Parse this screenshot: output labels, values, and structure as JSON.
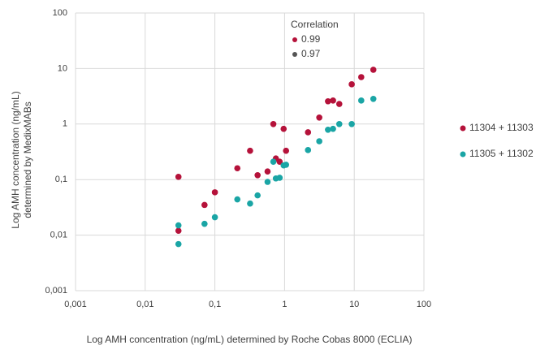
{
  "chart_data": {
    "type": "scatter",
    "xlabel": "Log AMH concentration (ng/mL) determined by Roche Cobas 8000 (ECLIA)",
    "ylabel": [
      "Log AMH concentration (ng/mL)",
      "determined by MedixMABs"
    ],
    "xscale": "log",
    "yscale": "log",
    "grid": true,
    "xlim": [
      0.001,
      100
    ],
    "ylim": [
      0.001,
      100
    ],
    "xticks": [
      {
        "value": 0.001,
        "label": "0,001"
      },
      {
        "value": 0.01,
        "label": "0,01"
      },
      {
        "value": 0.1,
        "label": "0,1"
      },
      1,
      10,
      100
    ],
    "yticks": [
      {
        "value": 0.001,
        "label": "0,001"
      },
      {
        "value": 0.01,
        "label": "0,01"
      },
      {
        "value": 0.1,
        "label": "0,1"
      },
      1,
      10,
      100
    ],
    "annotation": {
      "title": "Correlation",
      "items": [
        {
          "label": "0.99",
          "color": "#b5123a"
        },
        {
          "label": "0.97",
          "color": "#555555"
        }
      ]
    },
    "legend": "right",
    "series": [
      {
        "name": "11304 + 11303",
        "color": "#b5123a",
        "x": [
          0.03,
          0.03,
          0.071,
          0.1,
          0.21,
          0.32,
          0.41,
          0.57,
          0.69,
          0.75,
          0.85,
          0.97,
          1.05,
          2.17,
          3.15,
          4.2,
          4.96,
          6.1,
          9.2,
          12.6,
          18.8
        ],
        "values": [
          0.112,
          0.012,
          0.035,
          0.059,
          0.16,
          0.33,
          0.12,
          0.14,
          1.0,
          0.24,
          0.21,
          0.82,
          0.33,
          0.71,
          1.31,
          2.57,
          2.65,
          2.3,
          5.2,
          7.0,
          9.5
        ]
      },
      {
        "name": "11305 + 11302",
        "color": "#1aa5a5",
        "x": [
          0.03,
          0.03,
          0.071,
          0.1,
          0.21,
          0.32,
          0.41,
          0.57,
          0.69,
          0.75,
          0.85,
          0.97,
          1.05,
          2.17,
          3.15,
          4.2,
          4.96,
          6.1,
          9.2,
          12.6,
          18.8
        ],
        "values": [
          0.015,
          0.0069,
          0.016,
          0.021,
          0.044,
          0.037,
          0.052,
          0.091,
          0.21,
          0.105,
          0.108,
          0.18,
          0.185,
          0.34,
          0.49,
          0.79,
          0.82,
          1.0,
          1.0,
          2.65,
          2.84
        ]
      }
    ]
  }
}
